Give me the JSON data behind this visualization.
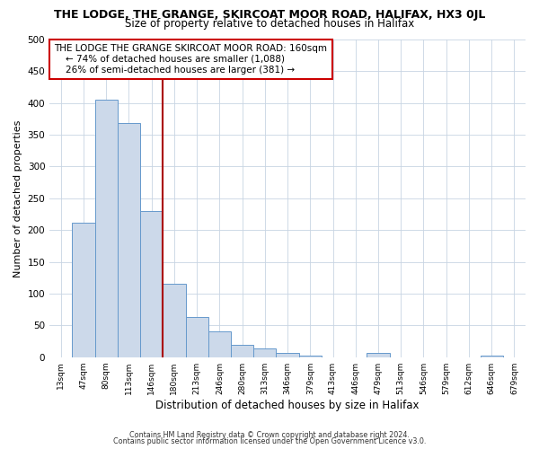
{
  "title": "THE LODGE, THE GRANGE, SKIRCOAT MOOR ROAD, HALIFAX, HX3 0JL",
  "subtitle": "Size of property relative to detached houses in Halifax",
  "xlabel": "Distribution of detached houses by size in Halifax",
  "ylabel": "Number of detached properties",
  "categories": [
    "13sqm",
    "47sqm",
    "80sqm",
    "113sqm",
    "146sqm",
    "180sqm",
    "213sqm",
    "246sqm",
    "280sqm",
    "313sqm",
    "346sqm",
    "379sqm",
    "413sqm",
    "446sqm",
    "479sqm",
    "513sqm",
    "546sqm",
    "579sqm",
    "612sqm",
    "646sqm",
    "679sqm"
  ],
  "values": [
    0,
    211,
    405,
    369,
    230,
    116,
    63,
    40,
    20,
    14,
    6,
    2,
    0,
    0,
    7,
    0,
    0,
    0,
    0,
    2,
    0
  ],
  "bar_color": "#ccd9ea",
  "bar_edge_color": "#6699cc",
  "property_line_color": "#aa0000",
  "annotation_title": "THE LODGE THE GRANGE SKIRCOAT MOOR ROAD: 160sqm",
  "annotation_line1": "← 74% of detached houses are smaller (1,088)",
  "annotation_line2": "26% of semi-detached houses are larger (381) →",
  "annotation_box_color": "#ffffff",
  "annotation_box_edge": "#cc0000",
  "ylim": [
    0,
    500
  ],
  "yticks": [
    0,
    50,
    100,
    150,
    200,
    250,
    300,
    350,
    400,
    450,
    500
  ],
  "footer1": "Contains HM Land Registry data © Crown copyright and database right 2024.",
  "footer2": "Contains public sector information licensed under the Open Government Licence v3.0.",
  "bg_color": "#ffffff",
  "grid_color": "#c8d4e3"
}
